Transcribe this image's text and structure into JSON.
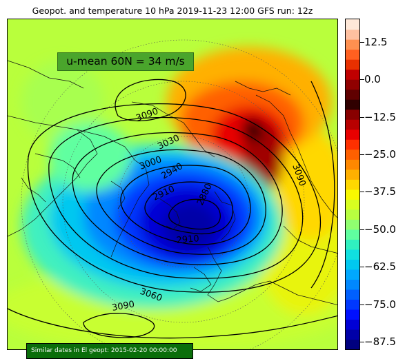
{
  "title": "Geopot. and temperature 10 hPa 2019-11-23 12:00 GFS run: 12z",
  "umean_label": "u-mean 60N = 34 m/s",
  "similar_label": "Similar dates in El geopt: 2015-02-20 00:00:00",
  "colorbar": {
    "min": -90,
    "max": 20,
    "ticks": [
      12.5,
      0.0,
      -12.5,
      -25.0,
      -37.5,
      -50.0,
      -62.5,
      -75.0,
      -87.5
    ],
    "tick_labels": [
      "12.5",
      "0.0",
      "−12.5",
      "−25.0",
      "−37.5",
      "−50.0",
      "−62.5",
      "−75.0",
      "−87.5"
    ],
    "colors_bottom_to_top": [
      "#00007f",
      "#0000a8",
      "#0000d6",
      "#0010ff",
      "#0038ff",
      "#0060ff",
      "#0088ff",
      "#00a8ff",
      "#00c8f0",
      "#10e0e0",
      "#30f0c0",
      "#60ffa0",
      "#90ff70",
      "#b8ff40",
      "#d8ff20",
      "#f8f800",
      "#ffd800",
      "#ffb000",
      "#ff8800",
      "#ff6000",
      "#ff3000",
      "#e80000",
      "#b80000",
      "#880000",
      "#300000",
      "#600000",
      "#900000",
      "#c00000",
      "#e83000",
      "#ff6020",
      "#ff9050",
      "#ffc0a0",
      "#ffe8d8"
    ]
  },
  "contour_labels": [
    "3090",
    "3030",
    "3000",
    "2940",
    "2910",
    "2880",
    "2910",
    "3060",
    "3090",
    "3090"
  ],
  "legend_colors": {
    "umean_box": "#4aa52c",
    "similar_box": "#0a6e0a"
  }
}
